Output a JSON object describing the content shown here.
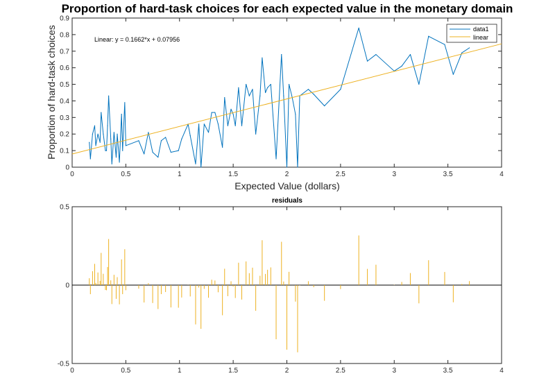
{
  "chart_data": [
    {
      "type": "line",
      "title": "Proportion of hard-task choices for each expected value in the monetary domain",
      "xlabel": "Expected Value (dollars)",
      "ylabel": "Proportion of hard-task choices",
      "xlim": [
        0,
        4
      ],
      "ylim": [
        0,
        0.9
      ],
      "xticks": [
        "0",
        "0.5",
        "1",
        "1.5",
        "2",
        "2.5",
        "3",
        "3.5",
        "4"
      ],
      "yticks": [
        "0",
        "0.1",
        "0.2",
        "0.3",
        "0.4",
        "0.5",
        "0.6",
        "0.7",
        "0.8",
        "0.9"
      ],
      "legend_placement": "top-right",
      "fit_annotation": "Linear:  y = 0.1662*x + 0.07956",
      "fit": {
        "slope": 0.1662,
        "intercept": 0.07956
      },
      "series": [
        {
          "name": "data1",
          "color": "#0072bd",
          "x": [
            0.16,
            0.17,
            0.19,
            0.21,
            0.22,
            0.24,
            0.26,
            0.27,
            0.29,
            0.31,
            0.32,
            0.33,
            0.34,
            0.36,
            0.37,
            0.39,
            0.41,
            0.42,
            0.44,
            0.46,
            0.47,
            0.49,
            0.5,
            0.62,
            0.67,
            0.71,
            0.75,
            0.8,
            0.83,
            0.87,
            0.92,
            0.99,
            1.02,
            1.08,
            1.1,
            1.15,
            1.18,
            1.2,
            1.23,
            1.27,
            1.3,
            1.33,
            1.36,
            1.4,
            1.42,
            1.45,
            1.48,
            1.5,
            1.52,
            1.55,
            1.58,
            1.62,
            1.65,
            1.68,
            1.71,
            1.75,
            1.77,
            1.8,
            1.82,
            1.85,
            1.9,
            1.95,
            1.97,
            2.0,
            2.02,
            2.05,
            2.08,
            2.1,
            2.12,
            2.2,
            2.25,
            2.35,
            2.5,
            2.67,
            2.75,
            2.83,
            3.0,
            3.07,
            3.15,
            3.23,
            3.32,
            3.47,
            3.55,
            3.63,
            3.7
          ],
          "values": [
            0.15,
            0.05,
            0.2,
            0.25,
            0.13,
            0.2,
            0.15,
            0.33,
            0.2,
            0.1,
            0.1,
            0.25,
            0.43,
            0.17,
            0.02,
            0.21,
            0.06,
            0.2,
            0.03,
            0.32,
            0.1,
            0.39,
            0.13,
            0.16,
            0.08,
            0.21,
            0.09,
            0.06,
            0.16,
            0.18,
            0.09,
            0.1,
            0.17,
            0.26,
            0.19,
            0.02,
            0.26,
            0.0,
            0.26,
            0.21,
            0.33,
            0.33,
            0.26,
            0.12,
            0.42,
            0.25,
            0.35,
            0.32,
            0.25,
            0.48,
            0.25,
            0.5,
            0.43,
            0.47,
            0.2,
            0.43,
            0.66,
            0.45,
            0.48,
            0.5,
            0.05,
            0.68,
            0.43,
            0.0,
            0.5,
            0.42,
            0.32,
            0.0,
            0.43,
            0.47,
            0.44,
            0.37,
            0.47,
            0.84,
            0.64,
            0.68,
            0.58,
            0.61,
            0.68,
            0.5,
            0.79,
            0.74,
            0.56,
            0.69,
            0.72
          ]
        },
        {
          "name": "linear",
          "color": "#edb120"
        }
      ]
    },
    {
      "type": "bar",
      "title": "residuals",
      "xlim": [
        0,
        4
      ],
      "ylim": [
        -0.5,
        0.5
      ],
      "xticks": [
        "0",
        "0.5",
        "1",
        "1.5",
        "2",
        "2.5",
        "3",
        "3.5",
        "4"
      ],
      "yticks": [
        "-0.5",
        "0",
        "0.5"
      ],
      "color": "#edb120"
    }
  ]
}
